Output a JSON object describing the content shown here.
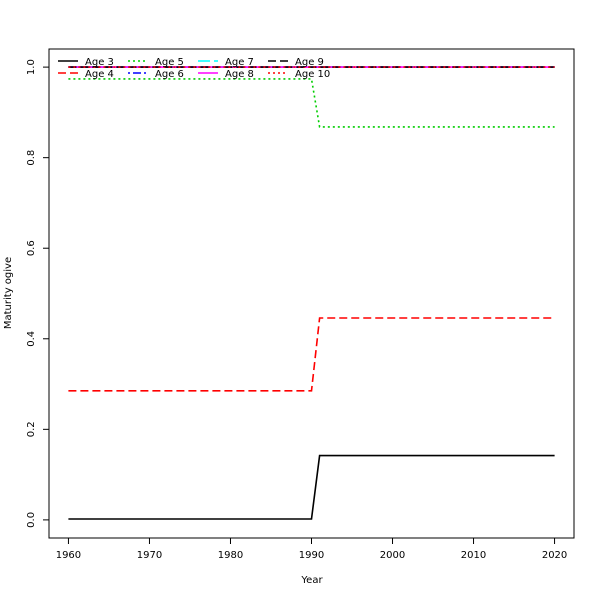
{
  "chart_data": {
    "type": "line",
    "title": "",
    "xlabel": "Year",
    "ylabel": "Maturity ogive",
    "xlim": [
      1957.6,
      2022.4
    ],
    "ylim": [
      -0.04,
      1.04
    ],
    "x_ticks": [
      1960,
      1970,
      1980,
      1990,
      2000,
      2010,
      2020
    ],
    "y_ticks": [
      0.0,
      0.2,
      0.4,
      0.6,
      0.8,
      1.0
    ],
    "y_tick_labels": [
      "0.0",
      "0.2",
      "0.4",
      "0.6",
      "0.8",
      "1.0"
    ],
    "grid": false,
    "legend_position": "top-left",
    "series": [
      {
        "name": "Age 3",
        "color": "#000000",
        "dash": "solid",
        "x": [
          1960,
          1990,
          1991,
          2020
        ],
        "y": [
          0.002,
          0.002,
          0.142,
          0.142
        ]
      },
      {
        "name": "Age 4",
        "color": "#ff0000",
        "dash": "dashed",
        "x": [
          1960,
          1990,
          1991,
          2020
        ],
        "y": [
          0.285,
          0.285,
          0.446,
          0.446
        ]
      },
      {
        "name": "Age 5",
        "color": "#00cd00",
        "dash": "dotted",
        "x": [
          1960,
          1990,
          1991,
          2020
        ],
        "y": [
          0.974,
          0.974,
          0.868,
          0.868
        ]
      },
      {
        "name": "Age 6",
        "color": "#0000ff",
        "dash": "dotdash",
        "x": [
          1960,
          2020
        ],
        "y": [
          1.0,
          1.0
        ]
      },
      {
        "name": "Age 7",
        "color": "#00ffff",
        "dash": "longdash",
        "x": [
          1960,
          2020
        ],
        "y": [
          1.0,
          1.0
        ]
      },
      {
        "name": "Age 8",
        "color": "#ff00ff",
        "dash": "solid",
        "x": [
          1960,
          2020
        ],
        "y": [
          1.0,
          1.0
        ]
      },
      {
        "name": "Age 9",
        "color": "#000000",
        "dash": "dashed",
        "x": [
          1960,
          2020
        ],
        "y": [
          1.0,
          1.0
        ]
      },
      {
        "name": "Age 10",
        "color": "#ff0000",
        "dash": "dotted",
        "x": [
          1960,
          2020
        ],
        "y": [
          1.0,
          1.0
        ]
      }
    ]
  }
}
